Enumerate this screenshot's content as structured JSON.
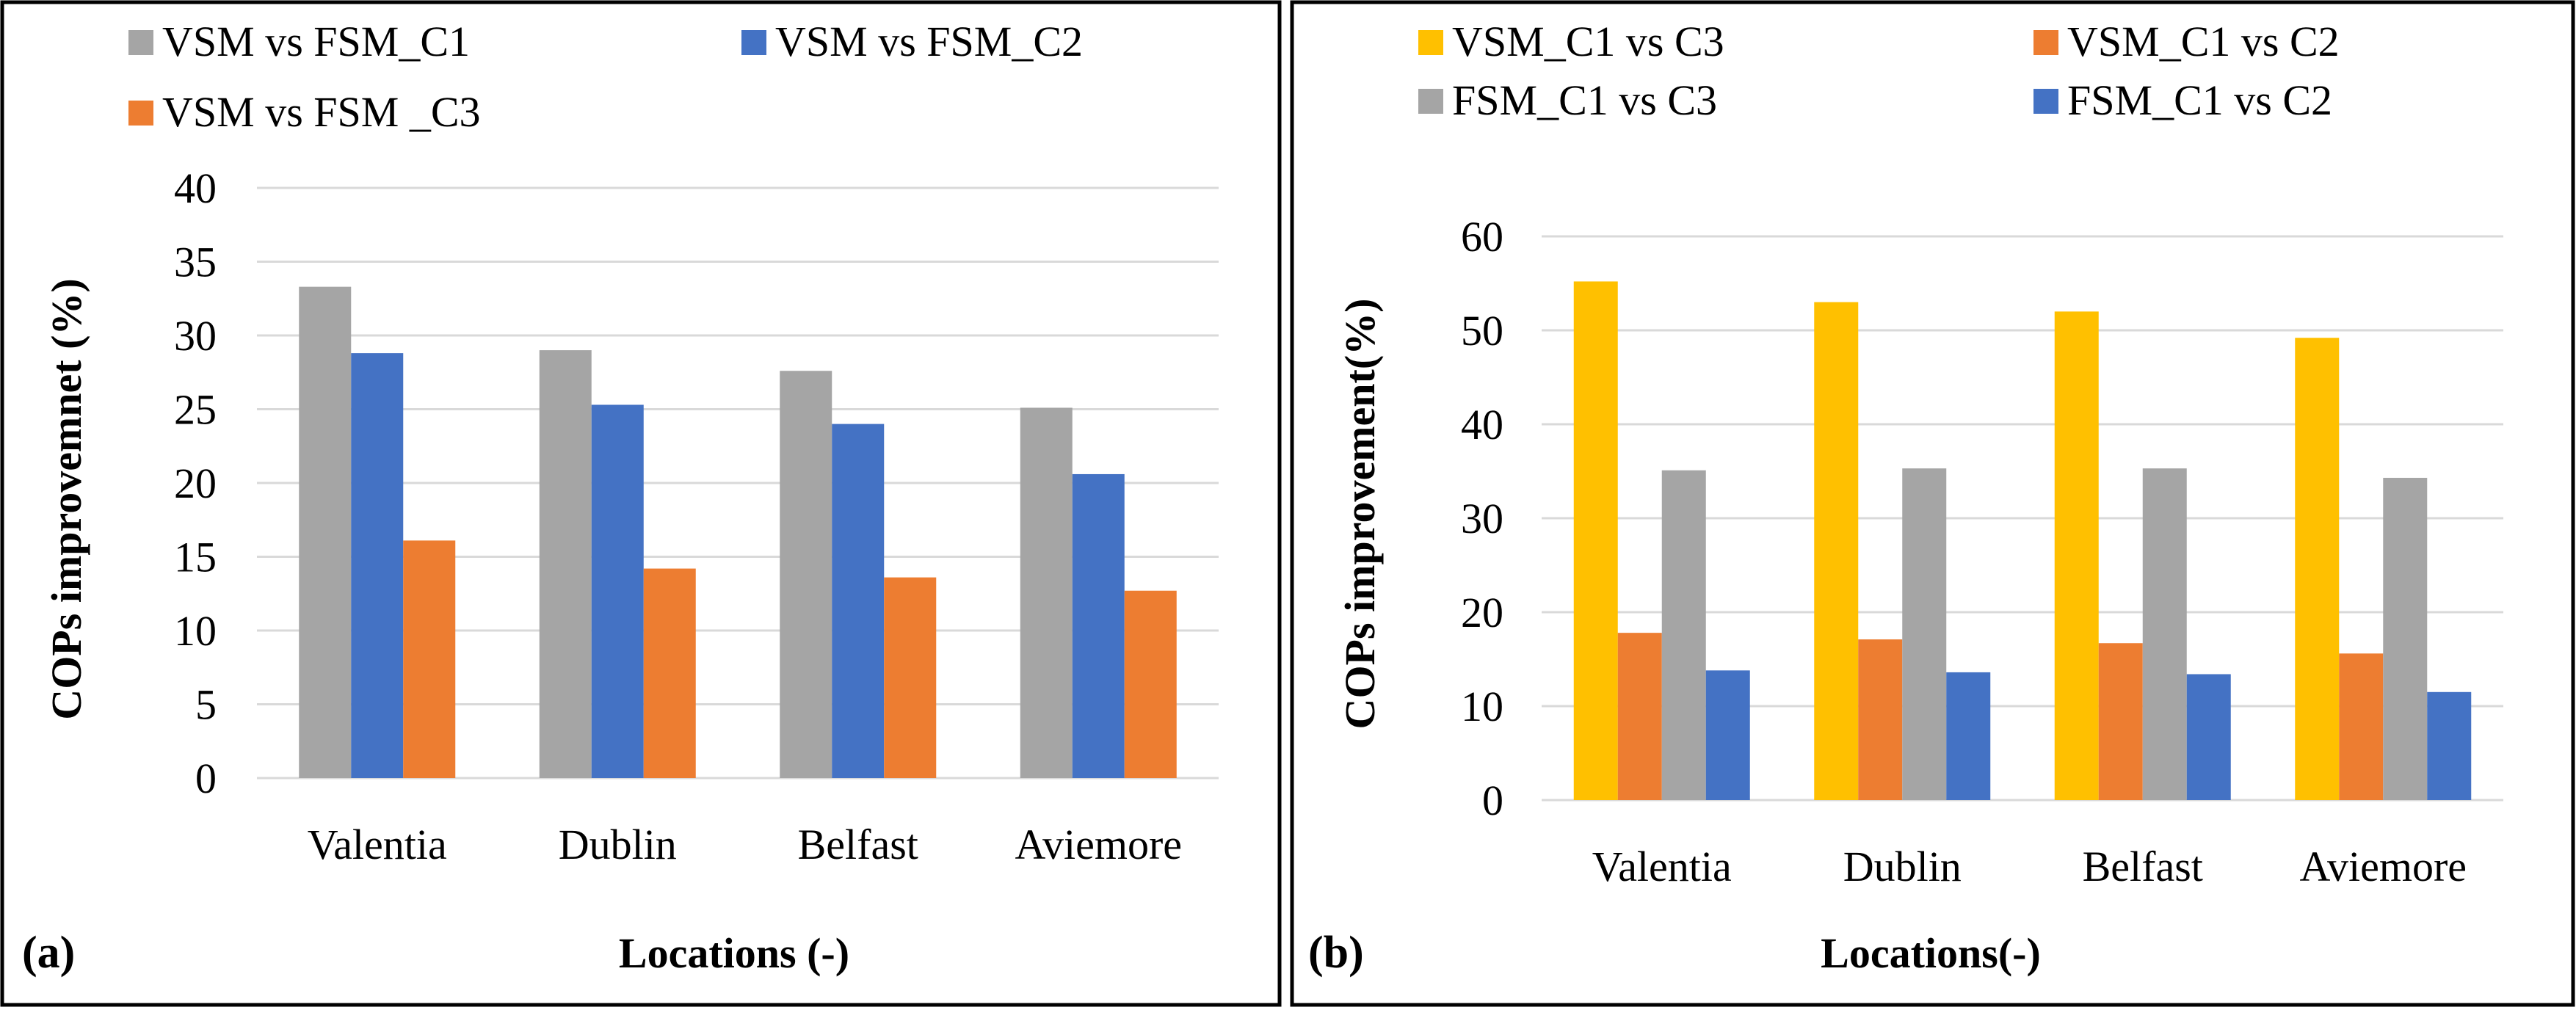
{
  "chart_data": [
    {
      "type": "bar",
      "panel_label": "(a)",
      "title": "",
      "xlabel": "Locations (-)",
      "ylabel": "COPs improvemnet (%)",
      "ylim": [
        0,
        40
      ],
      "yticks": [
        "0",
        "5",
        "10",
        "15",
        "20",
        "25",
        "30",
        "35",
        "40"
      ],
      "grid": true,
      "legend_position": "top",
      "categories": [
        "Valentia",
        "Dublin",
        "Belfast",
        "Aviemore"
      ],
      "series": [
        {
          "name": "VSM vs FSM_C1",
          "color": "#a5a5a5",
          "values": [
            33.3,
            29.0,
            27.6,
            25.1
          ]
        },
        {
          "name": "VSM vs FSM_C2",
          "color": "#4472c4",
          "values": [
            28.8,
            25.3,
            24.0,
            20.6
          ]
        },
        {
          "name": "VSM vs FSM _C3",
          "color": "#ed7d31",
          "values": [
            16.1,
            14.2,
            13.6,
            12.7
          ]
        }
      ]
    },
    {
      "type": "bar",
      "panel_label": "(b)",
      "title": "",
      "xlabel": "Locations(-)",
      "ylabel": "COPs improvement(%)",
      "ylim": [
        0,
        60
      ],
      "yticks": [
        "0",
        "10",
        "20",
        "30",
        "40",
        "50",
        "60"
      ],
      "grid": true,
      "legend_position": "top",
      "categories": [
        "Valentia",
        "Dublin",
        "Belfast",
        "Aviemore"
      ],
      "series": [
        {
          "name": "VSM_C1 vs C3",
          "color": "#ffc000",
          "values": [
            55.2,
            53.0,
            52.0,
            49.2
          ]
        },
        {
          "name": "VSM_C1 vs C2",
          "color": "#ed7d31",
          "values": [
            17.8,
            17.1,
            16.7,
            15.6
          ]
        },
        {
          "name": "FSM_C1 vs C3",
          "color": "#a5a5a5",
          "values": [
            35.1,
            35.3,
            35.3,
            34.3
          ]
        },
        {
          "name": "FSM_C1 vs C2",
          "color": "#4472c4",
          "values": [
            13.8,
            13.6,
            13.4,
            11.5
          ]
        }
      ]
    }
  ]
}
